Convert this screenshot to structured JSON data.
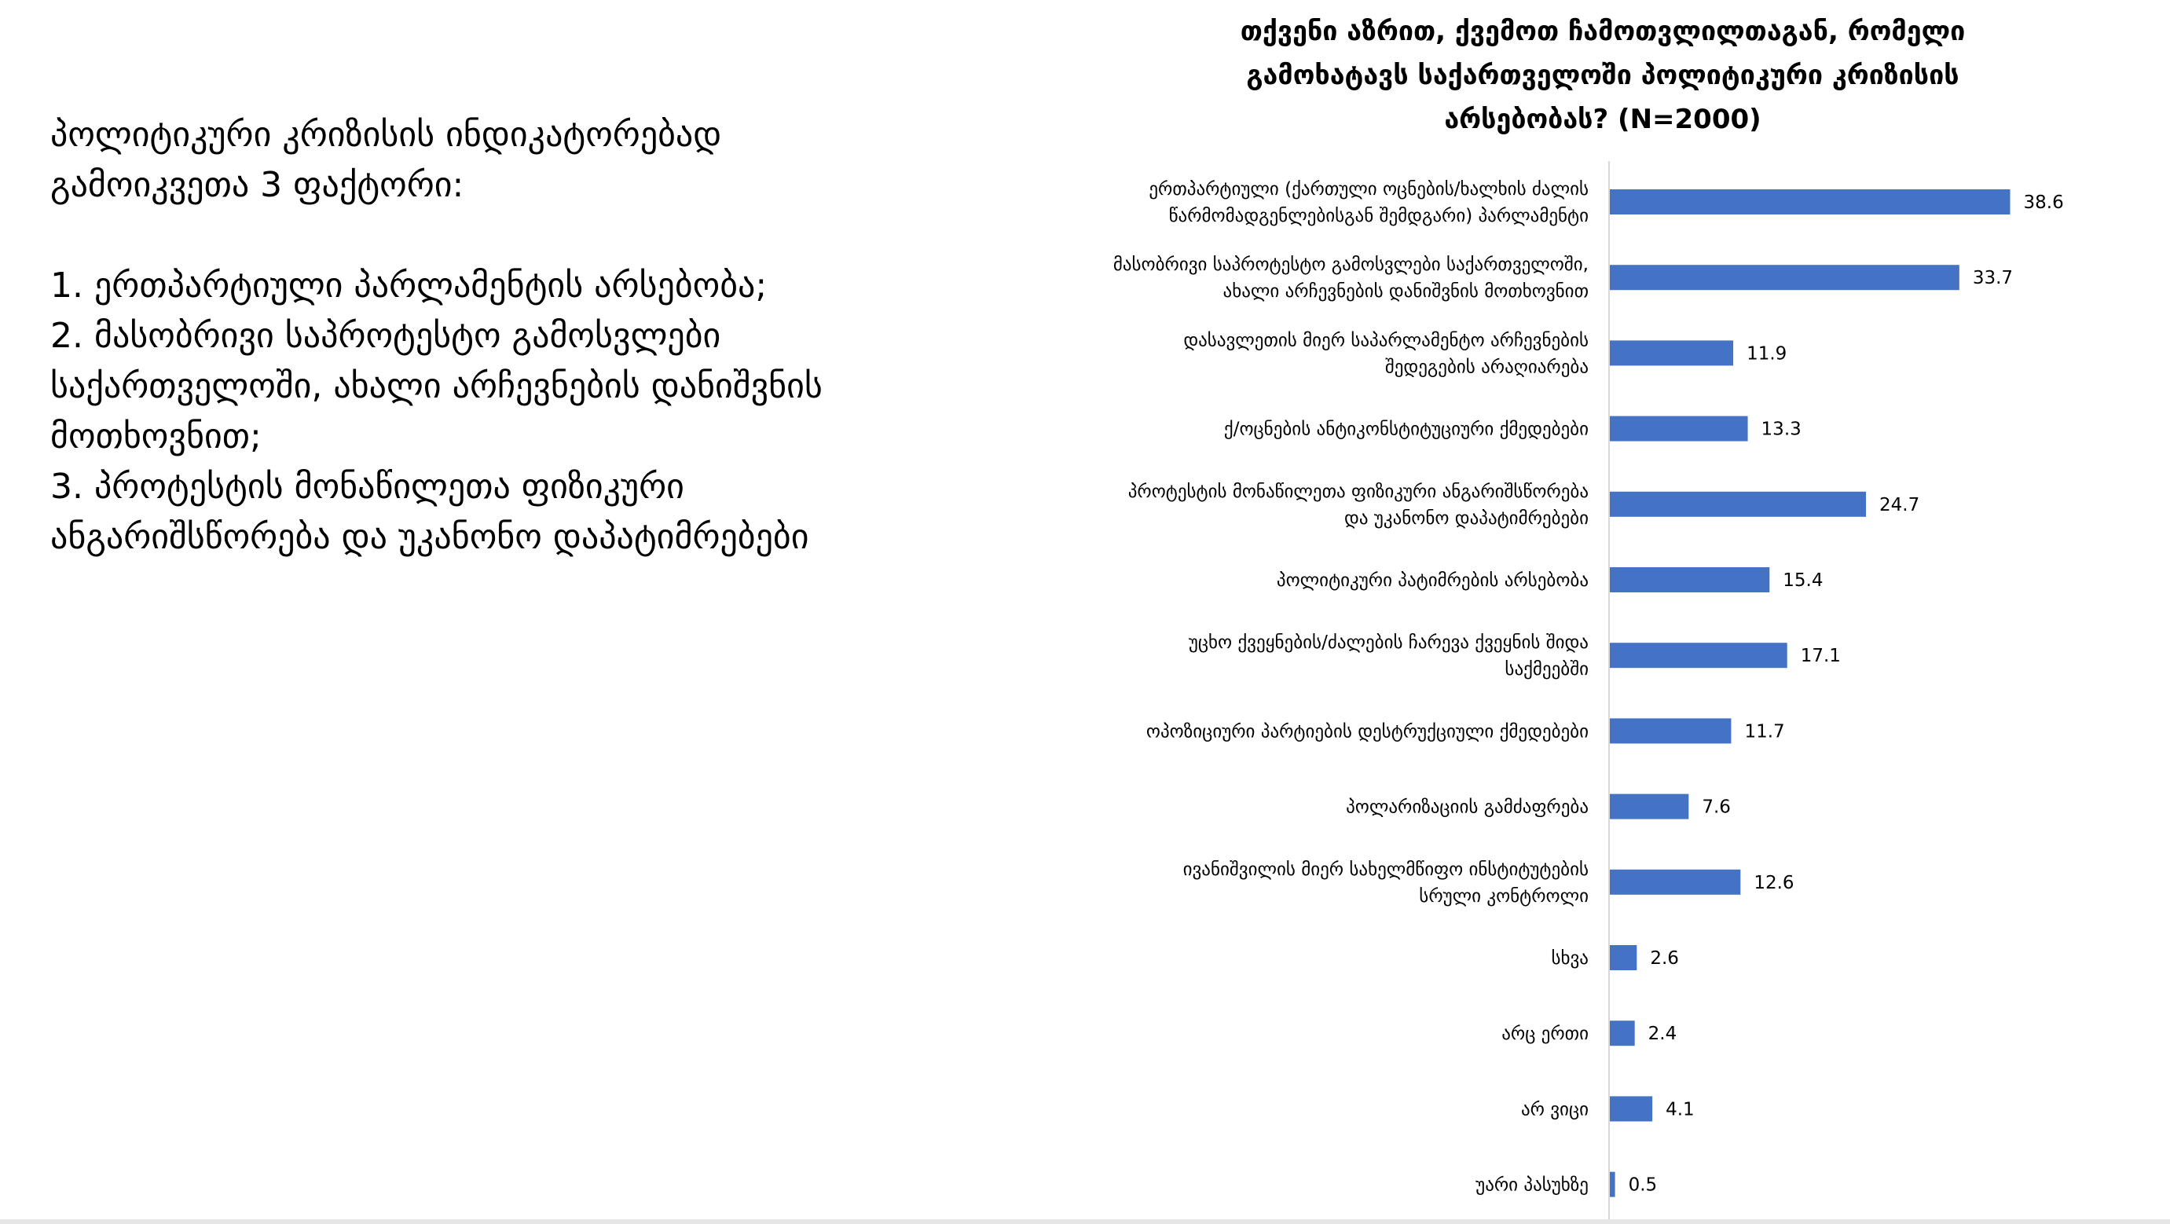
{
  "left_panel": {
    "heading": "პოლიტიკური კრიზისის ინდიკატორებად\nგამოიკვეთა 3 ფაქტორი:",
    "points": [
      "1. ერთპარტიული პარლამენტის არსებობა;",
      "2. მასობრივი საპროტესტო გამოსვლები\nსაქართველოში, ახალი არჩევნების დანიშვნის\nმოთხოვნით;",
      "3. პროტესტის მონაწილეთა ფიზიკური\nანგარიშსწორება და უკანონო დაპატიმრებები"
    ]
  },
  "chart_data": {
    "type": "bar",
    "orientation": "horizontal",
    "title": "თქვენი აზრით, ქვემოთ ჩამოთვლილთაგან, რომელი\nგამოხატავს საქართველოში პოლიტიკური კრიზისის\nარსებობას? (N=2000)",
    "categories": [
      "ერთპარტიული (ქართული ოცნების/ხალხის ძალის\nწარმომადგენლებისგან შემდგარი) პარლამენტი",
      "მასობრივი საპროტესტო გამოსვლები საქართველოში,\nახალი არჩევნების დანიშვნის მოთხოვნით",
      "დასავლეთის მიერ საპარლამენტო არჩევნების\nშედეგების არაღიარება",
      "ქ/ოცნების ანტიკონსტიტუციური ქმედებები",
      "პროტესტის მონაწილეთა ფიზიკური ანგარიშსწორება\nდა უკანონო დაპატიმრებები",
      "პოლიტიკური პატიმრების არსებობა",
      "უცხო ქვეყნების/ძალების ჩარევა ქვეყნის შიდა\nსაქმეებში",
      "ოპოზიციური პარტიების დესტრუქციული ქმედებები",
      "პოლარიზაციის გამძაფრება",
      "ივანიშვილის მიერ სახელმწიფო ინსტიტუტების\nსრული კონტროლი",
      "სხვა",
      "არც ერთი",
      "არ ვიცი",
      "უარი პასუხზე"
    ],
    "values": [
      38.6,
      33.7,
      11.9,
      13.3,
      24.7,
      15.4,
      17.1,
      11.7,
      7.6,
      12.6,
      2.6,
      2.4,
      4.1,
      0.5
    ],
    "value_labels": [
      "38.6",
      "33.7",
      "11.9",
      "13.3",
      "24.7",
      "15.4",
      "17.1",
      "11.7",
      "7.6",
      "12.6",
      "2.6",
      "2.4",
      "4.1",
      "0.5"
    ],
    "xlim": [
      0,
      45
    ],
    "grid": false,
    "legend": "none",
    "bar_color": "#4472c4",
    "axis_color": "#d9d9d9"
  }
}
